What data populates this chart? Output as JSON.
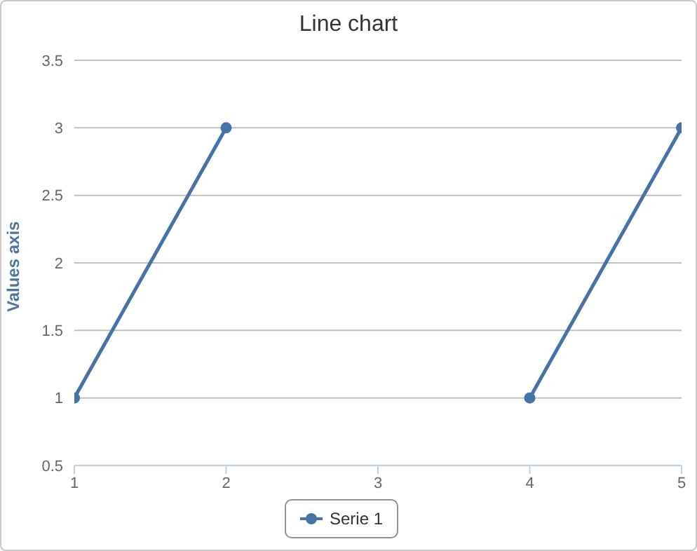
{
  "chart_data": {
    "type": "line",
    "title": "Line chart",
    "ylabel": "Values axis",
    "x": [
      1,
      2,
      3,
      4,
      5
    ],
    "series": [
      {
        "name": "Serie 1",
        "color": "#4572a7",
        "values": [
          1,
          3,
          null,
          1,
          3
        ]
      }
    ],
    "xlim": [
      1,
      5
    ],
    "xticks": [
      1,
      2,
      3,
      4,
      5
    ],
    "ylim": [
      0.5,
      3.5
    ],
    "yticks": [
      0.5,
      1,
      1.5,
      2,
      2.5,
      3,
      3.5
    ],
    "grid": "y",
    "legend": "bottom",
    "marker": "circle",
    "line_style": "solid"
  }
}
